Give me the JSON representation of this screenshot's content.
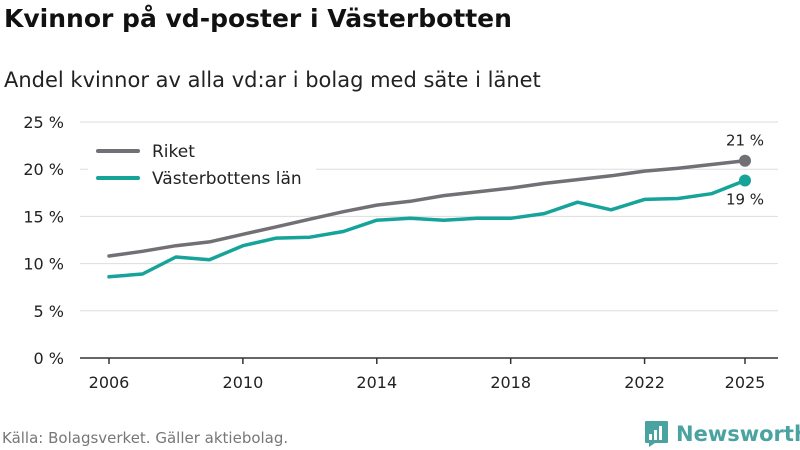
{
  "title": "Kvinnor på vd-poster i Västerbotten",
  "subtitle": "Andel kvinnor av alla vd:ar i bolag med säte i länet",
  "source": "Källa: Bolagsverket. Gäller aktiebolag.",
  "brand": "Newsworthy",
  "colors": {
    "riket": "#727074",
    "lan": "#16a39a",
    "grid": "#dddddd",
    "axis": "#333333"
  },
  "chart_data": {
    "type": "line",
    "title": "Kvinnor på vd-poster i Västerbotten",
    "subtitle": "Andel kvinnor av alla vd:ar i bolag med säte i länet",
    "xlabel": "",
    "ylabel": "",
    "x": [
      2006,
      2007,
      2008,
      2009,
      2010,
      2011,
      2012,
      2013,
      2014,
      2015,
      2016,
      2017,
      2018,
      2019,
      2020,
      2021,
      2022,
      2023,
      2024,
      2025
    ],
    "xticks": [
      "2006",
      "2010",
      "2014",
      "2018",
      "2022",
      "2025"
    ],
    "xlim": [
      2006,
      2025
    ],
    "ylim": [
      0,
      25
    ],
    "yticks": [
      "0 %",
      "5 %",
      "10 %",
      "15 %",
      "20 %",
      "25 %"
    ],
    "grid": true,
    "legend_position": "top-left",
    "series": [
      {
        "name": "Riket",
        "color": "#727074",
        "end_label": "21 %",
        "values": [
          10.8,
          11.3,
          11.9,
          12.3,
          13.1,
          13.9,
          14.7,
          15.5,
          16.2,
          16.6,
          17.2,
          17.6,
          18.0,
          18.5,
          18.9,
          19.3,
          19.8,
          20.1,
          20.5,
          20.9
        ]
      },
      {
        "name": "Västerbottens län",
        "color": "#16a39a",
        "end_label": "19 %",
        "values": [
          8.6,
          8.9,
          10.7,
          10.4,
          11.9,
          12.7,
          12.8,
          13.4,
          14.6,
          14.8,
          14.6,
          14.8,
          14.8,
          15.3,
          16.5,
          15.7,
          16.8,
          16.9,
          17.4,
          18.8
        ]
      }
    ]
  }
}
